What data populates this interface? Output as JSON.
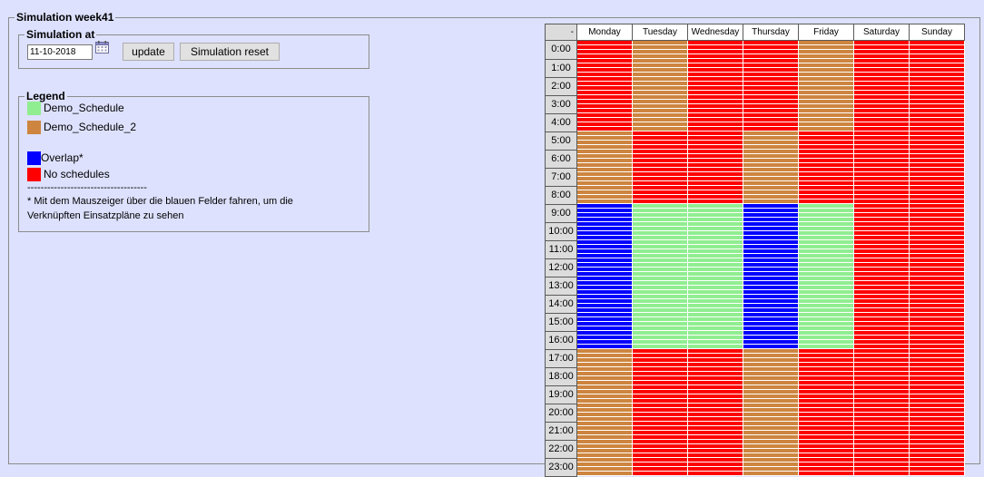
{
  "outer": {
    "title": "Simulation week41"
  },
  "simulation": {
    "title": "Simulation at",
    "date_value": "11-10-2018",
    "update_label": "update",
    "reset_label": "Simulation reset"
  },
  "legend": {
    "title": "Legend",
    "items": [
      {
        "label": "Demo_Schedule",
        "color": "#90ee90"
      },
      {
        "label": "Demo_Schedule_2",
        "color": "#cd853f"
      },
      {
        "label": "Overlap*",
        "color": "#0000ff"
      },
      {
        "label": "No schedules",
        "color": "#ff0000"
      }
    ],
    "separator": "------------------------------------",
    "note_line1": "* Mit dem Mauszeiger über die blauen Felder fahren, um die",
    "note_line2": "Verknüpften Einsatzpläne zu sehen"
  },
  "grid": {
    "corner": "-",
    "days": [
      "Monday",
      "Tuesday",
      "Wednesday",
      "Thursday",
      "Friday",
      "Saturday",
      "Sunday"
    ],
    "hours": [
      "0:00",
      "1:00",
      "2:00",
      "3:00",
      "4:00",
      "5:00",
      "6:00",
      "7:00",
      "8:00",
      "9:00",
      "10:00",
      "11:00",
      "12:00",
      "13:00",
      "14:00",
      "15:00",
      "16:00",
      "17:00",
      "18:00",
      "19:00",
      "20:00",
      "21:00",
      "22:00",
      "23:00"
    ],
    "rows": [
      [
        "red",
        "brown",
        "red",
        "red",
        "brown",
        "red",
        "red"
      ],
      [
        "red",
        "brown",
        "red",
        "red",
        "brown",
        "red",
        "red"
      ],
      [
        "red",
        "brown",
        "red",
        "red",
        "brown",
        "red",
        "red"
      ],
      [
        "red",
        "brown",
        "red",
        "red",
        "brown",
        "red",
        "red"
      ],
      [
        "red",
        "brown",
        "red",
        "red",
        "brown",
        "red",
        "red"
      ],
      [
        "brown",
        "red",
        "red",
        "brown",
        "red",
        "red",
        "red"
      ],
      [
        "brown",
        "red",
        "red",
        "brown",
        "red",
        "red",
        "red"
      ],
      [
        "brown",
        "red",
        "red",
        "brown",
        "red",
        "red",
        "red"
      ],
      [
        "brown",
        "red",
        "red",
        "brown",
        "red",
        "red",
        "red"
      ],
      [
        "blue",
        "green",
        "green",
        "blue",
        "green",
        "red",
        "red"
      ],
      [
        "blue",
        "green",
        "green",
        "blue",
        "green",
        "red",
        "red"
      ],
      [
        "blue",
        "green",
        "green",
        "blue",
        "green",
        "red",
        "red"
      ],
      [
        "blue",
        "green",
        "green",
        "blue",
        "green",
        "red",
        "red"
      ],
      [
        "blue",
        "green",
        "green",
        "blue",
        "green",
        "red",
        "red"
      ],
      [
        "blue",
        "green",
        "green",
        "blue",
        "green",
        "red",
        "red"
      ],
      [
        "blue",
        "green",
        "green",
        "blue",
        "green",
        "red",
        "red"
      ],
      [
        "blue",
        "green",
        "green",
        "blue",
        "green",
        "red",
        "red"
      ],
      [
        "brown",
        "red",
        "red",
        "brown",
        "red",
        "red",
        "red"
      ],
      [
        "brown",
        "red",
        "red",
        "brown",
        "red",
        "red",
        "red"
      ],
      [
        "brown",
        "red",
        "red",
        "brown",
        "red",
        "red",
        "red"
      ],
      [
        "brown",
        "red",
        "red",
        "brown",
        "red",
        "red",
        "red"
      ],
      [
        "brown",
        "red",
        "red",
        "brown",
        "red",
        "red",
        "red"
      ],
      [
        "brown",
        "red",
        "red",
        "brown",
        "red",
        "red",
        "red"
      ],
      [
        "brown",
        "red",
        "red",
        "brown",
        "red",
        "red",
        "red"
      ]
    ],
    "colors": {
      "red": "#ff0000",
      "brown": "#cd853f",
      "green": "#90ee90",
      "blue": "#0000ff"
    }
  }
}
